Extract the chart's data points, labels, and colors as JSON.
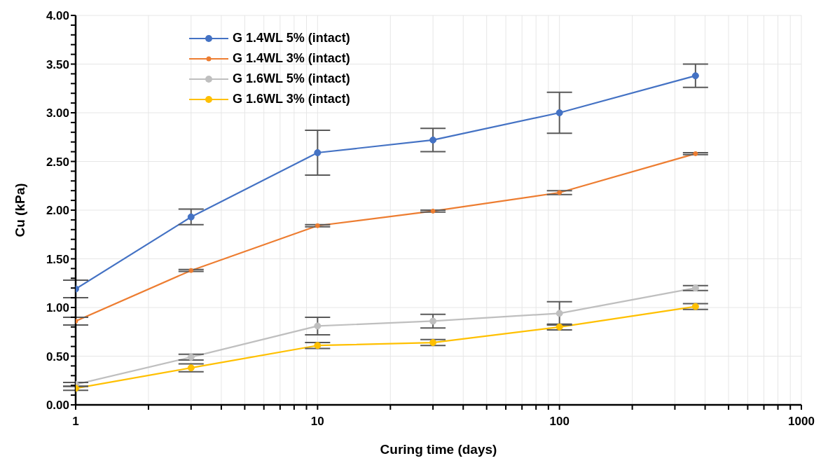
{
  "chart_data": {
    "type": "line",
    "xlabel": "Curing time (days)",
    "ylabel": "Cu (kPa)",
    "log": "x",
    "grid": true,
    "legend": "top left",
    "marker": "circle",
    "line_style": "solid",
    "x": [
      1,
      3,
      10,
      30,
      100,
      365
    ],
    "xlim": [
      1,
      1000
    ],
    "xticks": [
      1,
      {
        "value": 2,
        "label": null
      },
      {
        "value": 3,
        "label": null
      },
      {
        "value": 4,
        "label": null
      },
      {
        "value": 5,
        "label": null
      },
      {
        "value": 6,
        "label": null
      },
      {
        "value": 7,
        "label": null
      },
      {
        "value": 8,
        "label": null
      },
      {
        "value": 9,
        "label": null
      },
      10,
      {
        "value": 20,
        "label": null
      },
      {
        "value": 30,
        "label": null
      },
      {
        "value": 40,
        "label": null
      },
      {
        "value": 50,
        "label": null
      },
      {
        "value": 60,
        "label": null
      },
      {
        "value": 70,
        "label": null
      },
      {
        "value": 80,
        "label": null
      },
      {
        "value": 90,
        "label": null
      },
      100,
      {
        "value": 200,
        "label": null
      },
      {
        "value": 300,
        "label": null
      },
      {
        "value": 400,
        "label": null
      },
      {
        "value": 500,
        "label": null
      },
      {
        "value": 600,
        "label": null
      },
      {
        "value": 700,
        "label": null
      },
      {
        "value": 800,
        "label": null
      },
      {
        "value": 900,
        "label": null
      },
      1000
    ],
    "ylim": [
      0,
      4
    ],
    "yticks": [
      {
        "value": 0,
        "label": "0.00"
      },
      {
        "value": 0.1,
        "label": null
      },
      {
        "value": 0.2,
        "label": null
      },
      {
        "value": 0.3,
        "label": null
      },
      {
        "value": 0.4,
        "label": null
      },
      {
        "value": 0.5,
        "label": "0.50"
      },
      {
        "value": 0.6,
        "label": null
      },
      {
        "value": 0.7,
        "label": null
      },
      {
        "value": 0.8,
        "label": null
      },
      {
        "value": 0.9,
        "label": null
      },
      {
        "value": 1,
        "label": "1.00"
      },
      {
        "value": 1.1,
        "label": null
      },
      {
        "value": 1.2,
        "label": null
      },
      {
        "value": 1.3,
        "label": null
      },
      {
        "value": 1.4,
        "label": null
      },
      {
        "value": 1.5,
        "label": "1.50"
      },
      {
        "value": 1.6,
        "label": null
      },
      {
        "value": 1.7,
        "label": null
      },
      {
        "value": 1.8,
        "label": null
      },
      {
        "value": 1.9,
        "label": null
      },
      {
        "value": 2,
        "label": "2.00"
      },
      {
        "value": 2.1,
        "label": null
      },
      {
        "value": 2.2,
        "label": null
      },
      {
        "value": 2.3,
        "label": null
      },
      {
        "value": 2.4,
        "label": null
      },
      {
        "value": 2.5,
        "label": "2.50"
      },
      {
        "value": 2.6,
        "label": null
      },
      {
        "value": 2.7,
        "label": null
      },
      {
        "value": 2.8,
        "label": null
      },
      {
        "value": 2.9,
        "label": null
      },
      {
        "value": 3,
        "label": "3.00"
      },
      {
        "value": 3.1,
        "label": null
      },
      {
        "value": 3.2,
        "label": null
      },
      {
        "value": 3.3,
        "label": null
      },
      {
        "value": 3.4,
        "label": null
      },
      {
        "value": 3.5,
        "label": "3.50"
      },
      {
        "value": 3.6,
        "label": null
      },
      {
        "value": 3.7,
        "label": null
      },
      {
        "value": 3.8,
        "label": null
      },
      {
        "value": 3.9,
        "label": null
      },
      {
        "value": 4,
        "label": "4.00"
      }
    ],
    "series": [
      {
        "name": "G 1.4WL 5% (intact)",
        "color": "#4472c4",
        "values": [
          1.19,
          1.93,
          2.59,
          2.72,
          3.0,
          3.38
        ],
        "errors": [
          0.09,
          0.08,
          0.23,
          0.12,
          0.21,
          0.12
        ]
      },
      {
        "name": "G 1.4WL 3% (intact)",
        "color": "#ed7d31",
        "values": [
          0.86,
          1.38,
          1.84,
          1.99,
          2.18,
          2.58
        ],
        "errors": [
          0.04,
          0.01,
          0.01,
          0.01,
          0.02,
          0.01
        ]
      },
      {
        "name": "G 1.6WL 5% (intact)",
        "color": "#bfbfbf",
        "values": [
          0.21,
          0.49,
          0.81,
          0.86,
          0.94,
          1.2
        ],
        "errors": [
          0.02,
          0.03,
          0.09,
          0.07,
          0.12,
          0.025
        ]
      },
      {
        "name": "G 1.6WL 3% (intact)",
        "color": "#ffc000",
        "values": [
          0.17,
          0.38,
          0.61,
          0.64,
          0.8,
          1.01
        ],
        "errors": [
          0.02,
          0.04,
          0.03,
          0.03,
          0.03,
          0.03
        ]
      }
    ]
  }
}
